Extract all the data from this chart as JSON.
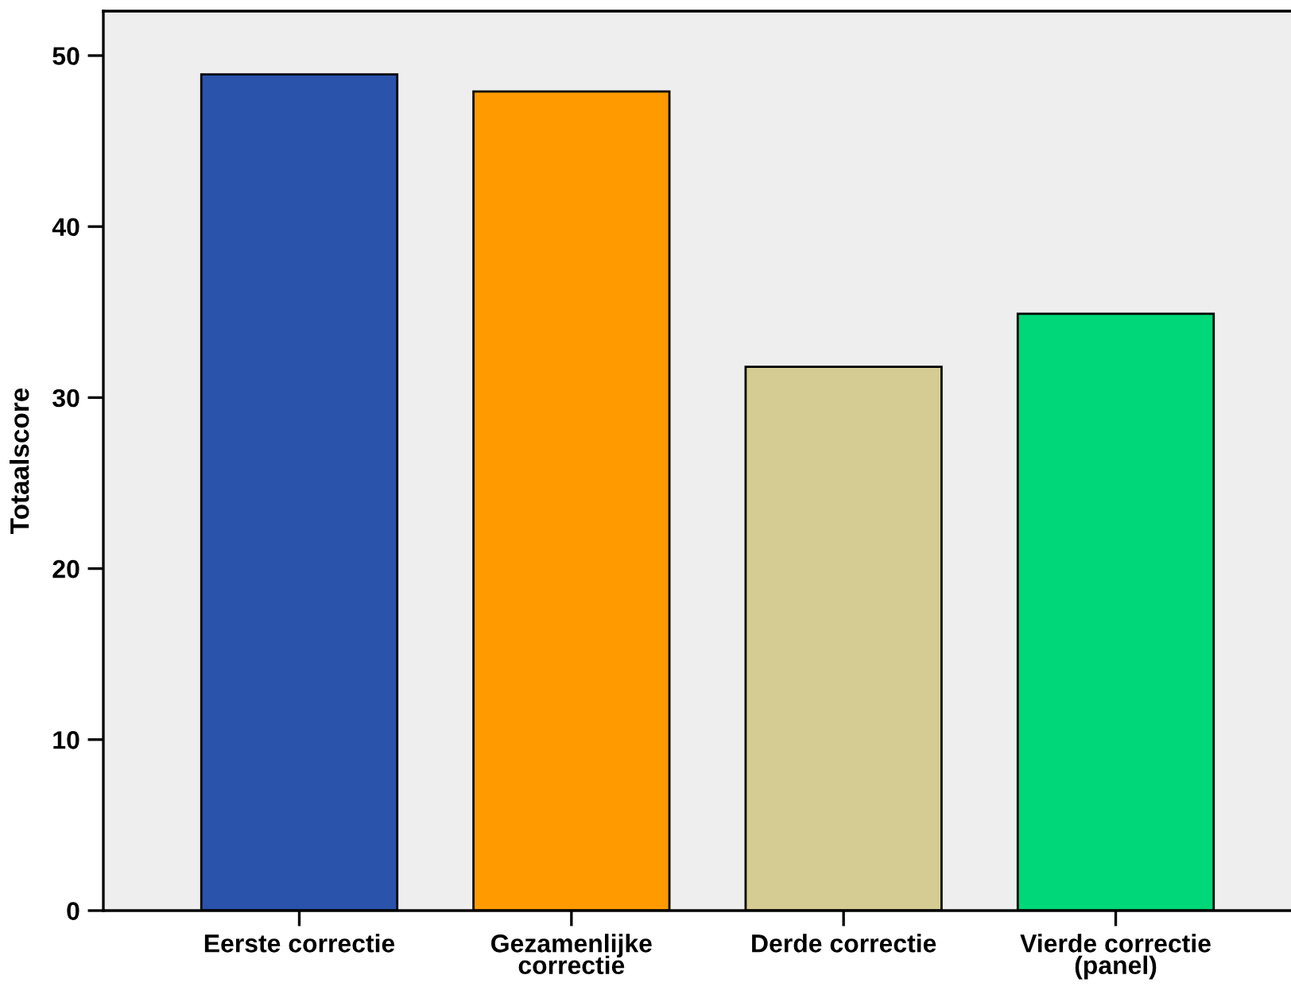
{
  "chart_data": {
    "type": "bar",
    "ylabel": "Totaalscore",
    "categories": [
      "Eerste correctie",
      "Gezamenlijke\ncorrectie",
      "Derde correctie",
      "Vierde correctie\n(panel)"
    ],
    "values": [
      48.9,
      47.9,
      31.8,
      34.9
    ],
    "colors": [
      "#2a53ab",
      "#ff9b00",
      "#d4cc93",
      "#00d778"
    ],
    "ylim": [
      0,
      52.6
    ],
    "yticks": [
      0,
      10,
      20,
      30,
      40,
      50
    ],
    "grid": false,
    "legend": false
  }
}
